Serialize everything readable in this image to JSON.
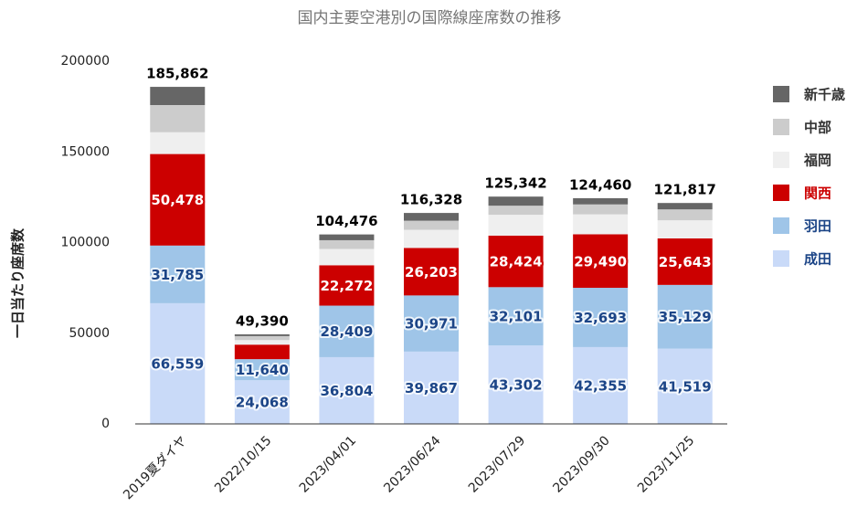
{
  "chart_data": {
    "type": "stacked_bar",
    "title": "国内主要空港別の国際線座席数の推移",
    "y_label": "一日当たり座席数",
    "categories": [
      "2019夏ダイヤ",
      "2022/10/15",
      "2023/04/01",
      "2023/06/24",
      "2023/07/29",
      "2023/09/30",
      "2023/11/25"
    ],
    "series": [
      {
        "name": "成田",
        "color": "#c9daf8",
        "label_color": "#1c4587",
        "values": [
          66559,
          24068,
          36804,
          39867,
          43302,
          42355,
          41519
        ],
        "value_labels": [
          "66,559",
          "24,068",
          "36,804",
          "39,867",
          "43,302",
          "42,355",
          "41,519"
        ]
      },
      {
        "name": "羽田",
        "color": "#9fc5e8",
        "label_color": "#1c4587",
        "values": [
          31785,
          11640,
          28409,
          30971,
          32101,
          32693,
          35129
        ],
        "value_labels": [
          "31,785",
          "11,640",
          "28,409",
          "30,971",
          "32,101",
          "32,693",
          "35,129"
        ]
      },
      {
        "name": "関西",
        "color": "#cc0000",
        "label_color": "#cc0000",
        "values": [
          50478,
          8000,
          22272,
          26203,
          28424,
          29490,
          25643
        ],
        "value_labels": [
          "50,478",
          null,
          "22,272",
          "26,203",
          "28,424",
          "29,490",
          "25,643"
        ]
      },
      {
        "name": "福岡",
        "color": "#efefef",
        "label_color": "#333333",
        "values": [
          12000,
          2500,
          9000,
          10000,
          11500,
          11000,
          10000
        ]
      },
      {
        "name": "中部",
        "color": "#cccccc",
        "label_color": "#333333",
        "values": [
          15000,
          2200,
          4800,
          5000,
          5000,
          5500,
          6000
        ]
      },
      {
        "name": "新千歳",
        "color": "#666666",
        "label_color": "#333333",
        "values": [
          10040,
          982,
          3191,
          4287,
          5015,
          3422,
          3526
        ]
      }
    ],
    "totals": [
      185862,
      49390,
      104476,
      116328,
      125342,
      124460,
      121817
    ],
    "total_labels": [
      "185,862",
      "49,390",
      "104,476",
      "116,328",
      "125,342",
      "124,460",
      "121,817"
    ],
    "ylim": [
      0,
      200000
    ],
    "yticks": [
      0,
      50000,
      100000,
      150000,
      200000
    ],
    "grid": false,
    "legend": "right"
  }
}
